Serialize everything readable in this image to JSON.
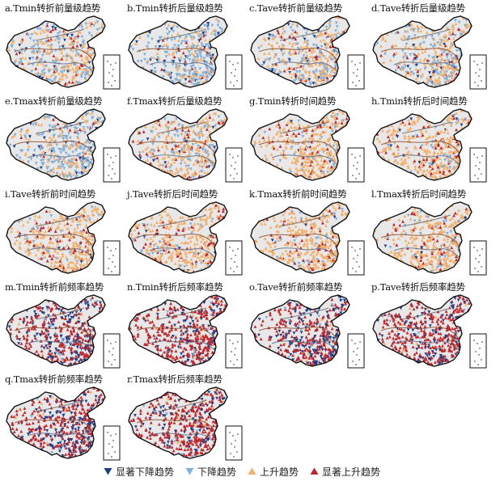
{
  "panels": [
    {
      "id": "a",
      "title": "a.Tmin转折前量级趋势",
      "mode": "mag_mix"
    },
    {
      "id": "b",
      "title": "b.Tmin转折后量级趋势",
      "mode": "mag_blue"
    },
    {
      "id": "c",
      "title": "c.Tave转折前量级趋势",
      "mode": "mag_mix"
    },
    {
      "id": "d",
      "title": "d.Tave转折后量级趋势",
      "mode": "mag_mix"
    },
    {
      "id": "e",
      "title": "e.Tmax转折前量级趋势",
      "mode": "mag_blue"
    },
    {
      "id": "f",
      "title": "f.Tmax转折后量级趋势",
      "mode": "mag_orange"
    },
    {
      "id": "g",
      "title": "g.Tmin转折时间趋势",
      "mode": "time_orange"
    },
    {
      "id": "h",
      "title": "h.Tmin转折后时间趋势",
      "mode": "time_orange"
    },
    {
      "id": "i",
      "title": "i.Tave转折前时间趋势",
      "mode": "time_orange"
    },
    {
      "id": "j",
      "title": "j.Tave转折后时间趋势",
      "mode": "time_orange"
    },
    {
      "id": "k",
      "title": "k.Tmax转折前时间趋势",
      "mode": "time_orange"
    },
    {
      "id": "l",
      "title": "l.Tmax转折后时间趋势",
      "mode": "time_orange"
    },
    {
      "id": "m",
      "title": "m.Tmin转折前频率趋势",
      "mode": "freq"
    },
    {
      "id": "n",
      "title": "n.Tmin转折后频率趋势",
      "mode": "freq_red"
    },
    {
      "id": "o",
      "title": "o.Tave转折前频率趋势",
      "mode": "freq"
    },
    {
      "id": "p",
      "title": "p.Tave转折后频率趋势",
      "mode": "freq_red"
    },
    {
      "id": "q",
      "title": "q.Tmax转折前频率趋势",
      "mode": "freq"
    },
    {
      "id": "r",
      "title": "r.Tmax转折后频率趋势",
      "mode": "freq_red"
    }
  ],
  "legend": [
    {
      "label": "显著下降趋势",
      "color": "#1f3f86",
      "shape": "triangle-down"
    },
    {
      "label": "下降趋势",
      "color": "#7fb0dc",
      "shape": "triangle-down"
    },
    {
      "label": "上升趋势",
      "color": "#f4b06a",
      "shape": "triangle-up"
    },
    {
      "label": "显著上升趋势",
      "color": "#c0272d",
      "shape": "triangle-up"
    }
  ]
}
